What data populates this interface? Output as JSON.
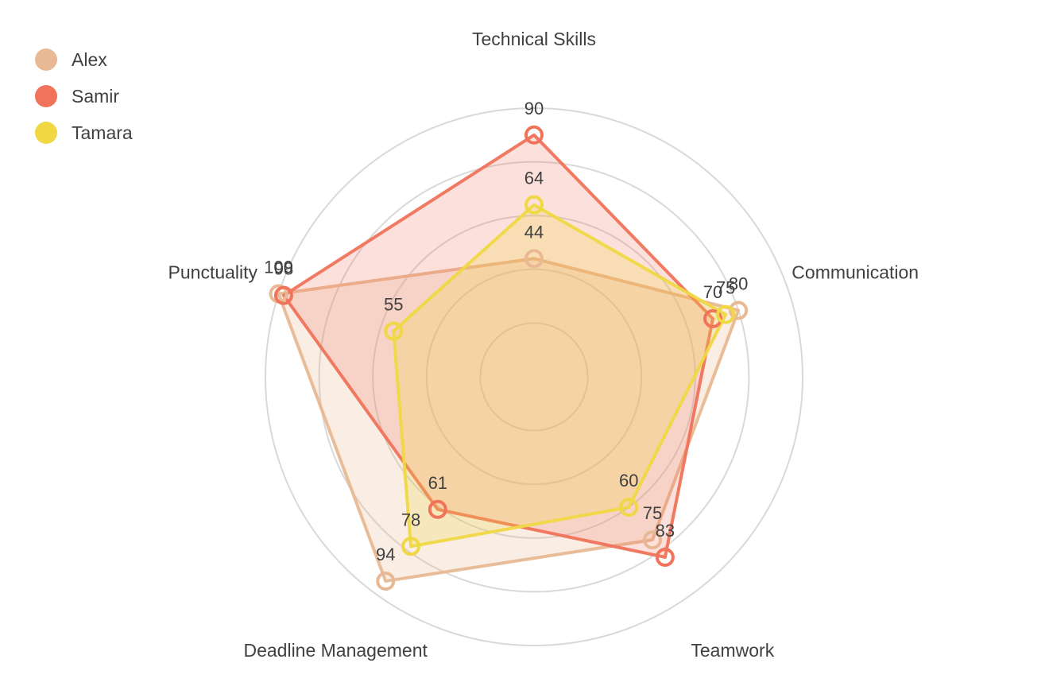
{
  "chart_data": {
    "type": "radar",
    "axes": [
      "Technical Skills",
      "Communication",
      "Teamwork",
      "Deadline Management",
      "Punctuality"
    ],
    "rmax": 100,
    "grid_levels": [
      20,
      40,
      60,
      80,
      100
    ],
    "grid": true,
    "legend_position": "top-left",
    "series": [
      {
        "name": "Alex",
        "color": "#E8B994",
        "fill_opacity": 0.25,
        "values": [
          44,
          80,
          75,
          94,
          100
        ]
      },
      {
        "name": "Samir",
        "color": "#F0735A",
        "fill_opacity": 0.22,
        "values": [
          90,
          70,
          83,
          61,
          98
        ]
      },
      {
        "name": "Tamara",
        "color": "#EFD843",
        "fill_opacity": 0.25,
        "values": [
          64,
          75,
          60,
          78,
          55
        ]
      }
    ]
  }
}
